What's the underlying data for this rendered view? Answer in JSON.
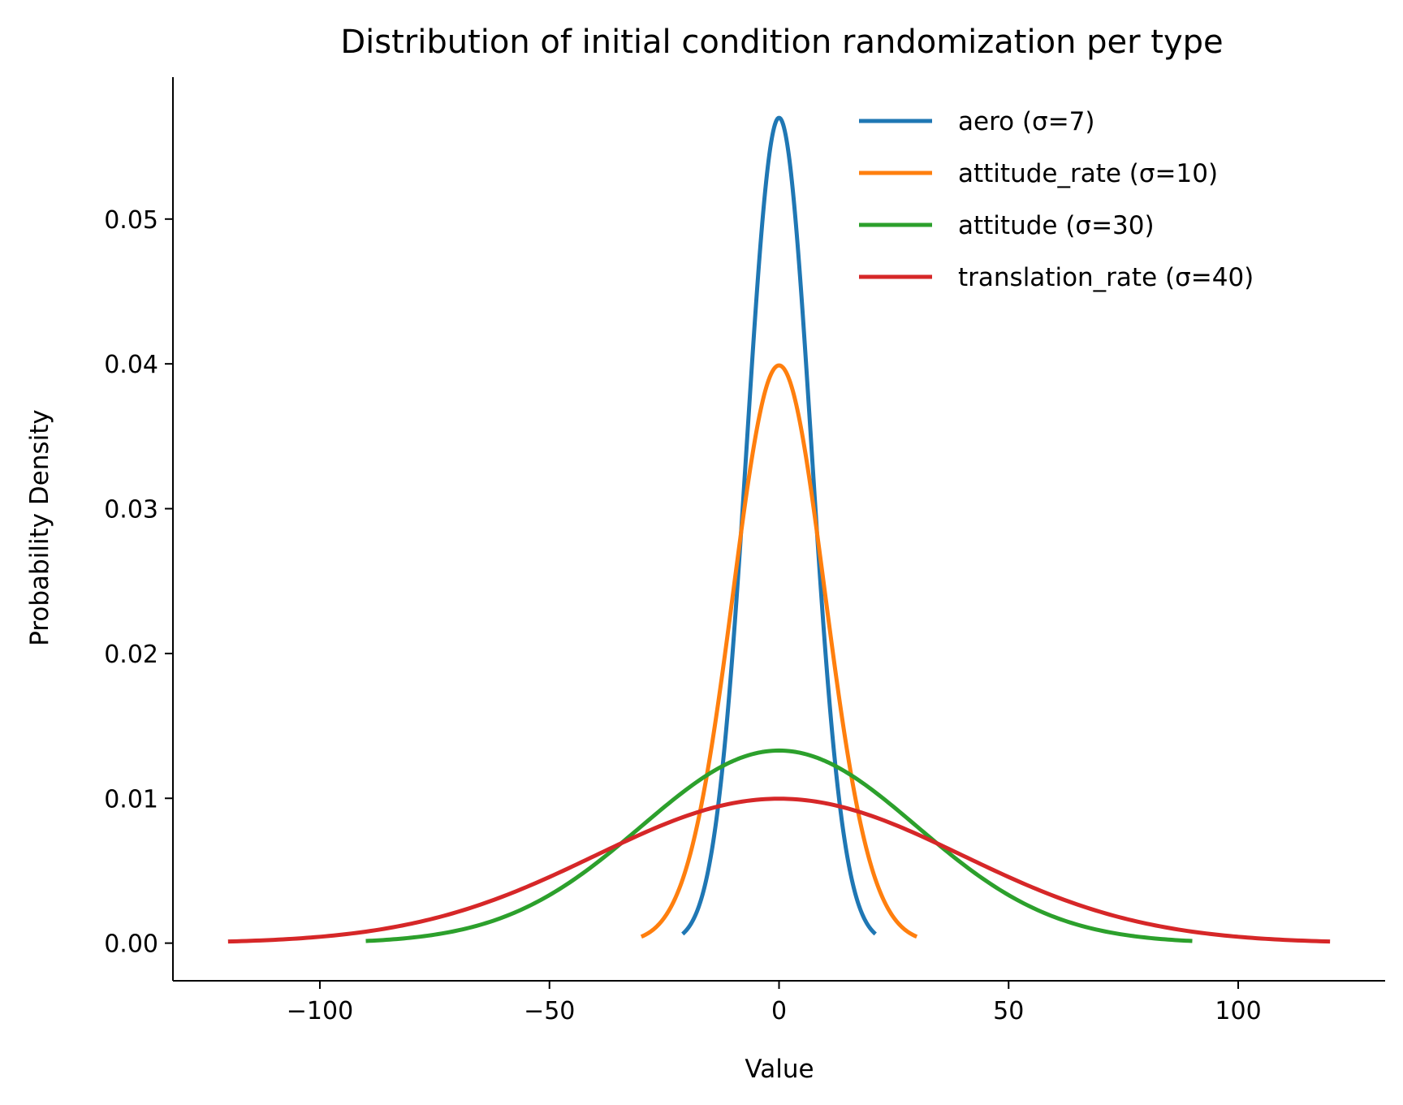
{
  "chart_data": {
    "type": "line",
    "title": "Distribution of initial condition randomization per type",
    "xlabel": "Value",
    "ylabel": "Probability Density",
    "xlim": [
      -132,
      132
    ],
    "ylim": [
      -0.0026,
      0.0598
    ],
    "x_ticks": [
      -100,
      -50,
      0,
      50,
      100
    ],
    "x_tick_labels": [
      "−100",
      "−50",
      "0",
      "50",
      "100"
    ],
    "y_ticks": [
      0.0,
      0.01,
      0.02,
      0.03,
      0.04,
      0.05
    ],
    "y_tick_labels": [
      "0.00",
      "0.01",
      "0.02",
      "0.03",
      "0.04",
      "0.05"
    ],
    "grid": false,
    "legend_position": "top-right",
    "series": [
      {
        "name": "aero (σ=7)",
        "color": "#1f77b4",
        "mean": 0,
        "sigma": 7,
        "x_range": [
          -21,
          21
        ],
        "peak_density": 0.057
      },
      {
        "name": "attitude_rate (σ=10)",
        "color": "#ff7f0e",
        "mean": 0,
        "sigma": 10,
        "x_range": [
          -30,
          30
        ],
        "peak_density": 0.0399
      },
      {
        "name": "attitude (σ=30)",
        "color": "#2ca02c",
        "mean": 0,
        "sigma": 30,
        "x_range": [
          -90,
          90
        ],
        "peak_density": 0.0133
      },
      {
        "name": "translation_rate (σ=40)",
        "color": "#d62728",
        "mean": 0,
        "sigma": 40,
        "x_range": [
          -120,
          120
        ],
        "peak_density": 0.00997
      }
    ]
  }
}
